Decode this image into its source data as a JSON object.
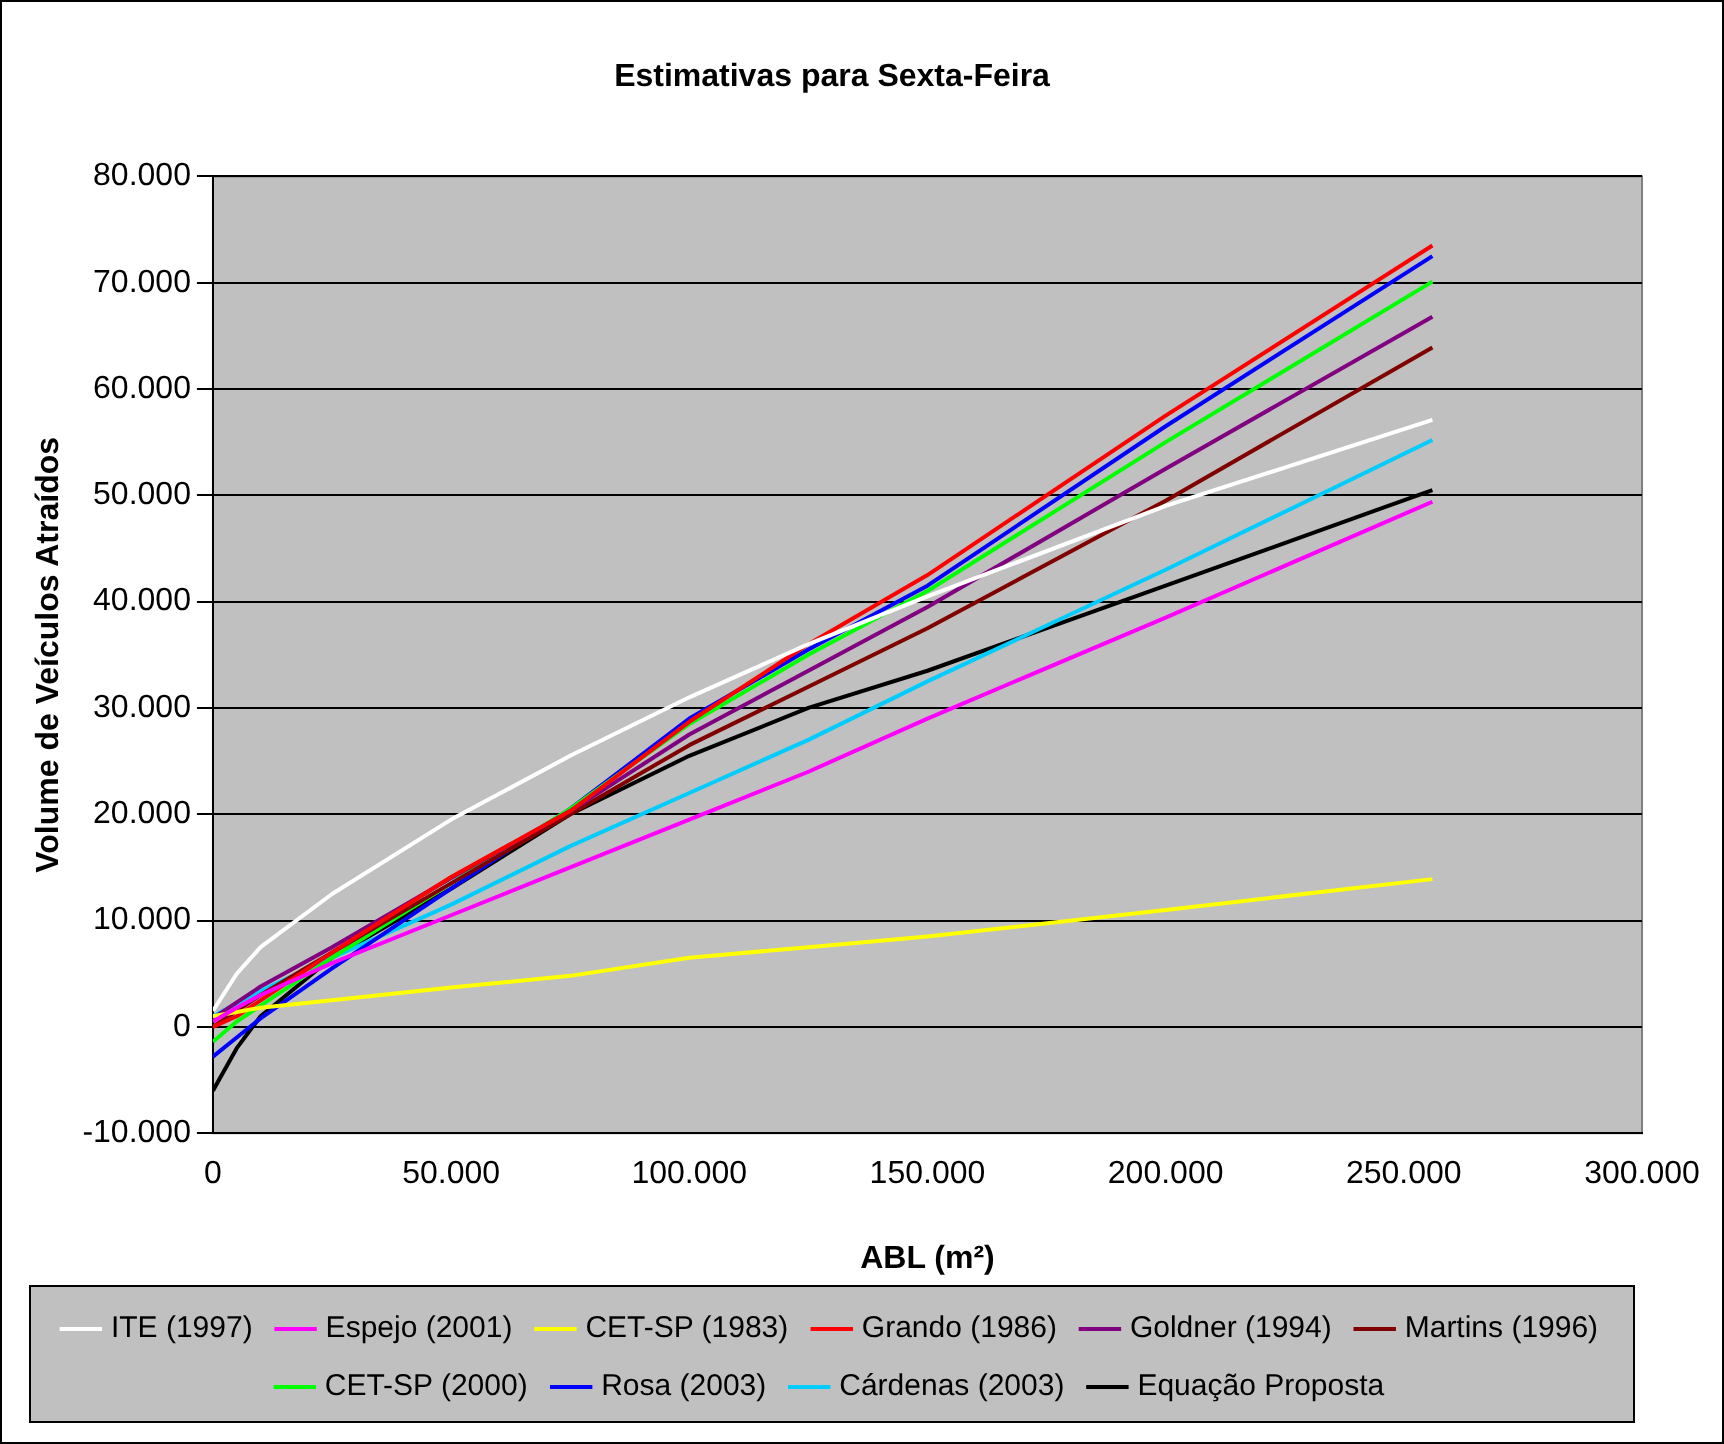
{
  "chart_data": {
    "type": "line",
    "title": "Estimativas para Sexta-Feira",
    "xlabel": "ABL (m²)",
    "ylabel": "Volume de Veículos Atraídos",
    "xlim": [
      0,
      300000
    ],
    "xticks": [
      0,
      {
        "value": 50000,
        "label": "50.000"
      },
      {
        "value": 100000,
        "label": "100.000"
      },
      {
        "value": 150000,
        "label": "150.000"
      },
      {
        "value": 200000,
        "label": "200.000"
      },
      {
        "value": 250000,
        "label": "250.000"
      },
      {
        "value": 300000,
        "label": "300.000"
      }
    ],
    "ylim": [
      -10000,
      80000
    ],
    "yticks": [
      {
        "value": -10000,
        "label": "-10.000"
      },
      0,
      {
        "value": 10000,
        "label": "10.000"
      },
      {
        "value": 20000,
        "label": "20.000"
      },
      {
        "value": 30000,
        "label": "30.000"
      },
      {
        "value": 40000,
        "label": "40.000"
      },
      {
        "value": 50000,
        "label": "50.000"
      },
      {
        "value": 60000,
        "label": "60.000"
      },
      {
        "value": 70000,
        "label": "70.000"
      },
      {
        "value": 80000,
        "label": "80.000"
      }
    ],
    "grid": "y",
    "legend": "bottom",
    "x": [
      0,
      5000,
      10000,
      25000,
      50000,
      75000,
      100000,
      125000,
      150000,
      200000,
      256000
    ],
    "series": [
      {
        "name": "ITE (1997)",
        "color": "#ffffff",
        "values": [
          1500,
          5000,
          7500,
          12500,
          19500,
          25500,
          31000,
          36000,
          40500,
          49000,
          57100
        ]
      },
      {
        "name": "Espejo (2001)",
        "color": "#ff00ff",
        "values": [
          500,
          1800,
          3000,
          6000,
          10500,
          15000,
          19500,
          24000,
          29000,
          38500,
          49400
        ]
      },
      {
        "name": "CET-SP (1983)",
        "color": "#ffff00",
        "values": [
          1000,
          1400,
          1800,
          2500,
          3700,
          4800,
          6500,
          7500,
          8500,
          11000,
          13900
        ]
      },
      {
        "name": "Grando (1986)",
        "color": "#ff0000",
        "values": [
          0,
          1000,
          2500,
          7000,
          14100,
          20300,
          28700,
          36000,
          42500,
          57500,
          73500
        ]
      },
      {
        "name": "Goldner (1994)",
        "color": "#800080",
        "values": [
          800,
          2300,
          3800,
          7500,
          14000,
          20300,
          27500,
          33500,
          39500,
          52500,
          66800
        ]
      },
      {
        "name": "Martins (1996)",
        "color": "#800000",
        "values": [
          0,
          1500,
          3000,
          7000,
          13500,
          20000,
          26500,
          32000,
          37500,
          49500,
          63900
        ]
      },
      {
        "name": "CET-SP (2000)",
        "color": "#00ff00",
        "values": [
          -1400,
          500,
          2000,
          6500,
          13500,
          20500,
          28500,
          35000,
          41000,
          55000,
          70100
        ]
      },
      {
        "name": "Rosa (2003)",
        "color": "#0000ff",
        "values": [
          -2800,
          -1000,
          800,
          5500,
          13000,
          20500,
          29000,
          35500,
          41500,
          56500,
          72500
        ]
      },
      {
        "name": "Cárdenas (2003)",
        "color": "#00ccff",
        "values": [
          1000,
          2200,
          3400,
          6500,
          11500,
          17000,
          22000,
          27000,
          32500,
          43000,
          55200
        ]
      },
      {
        "name": "Equação Proposta",
        "color": "#000000",
        "values": [
          -6000,
          -2000,
          1000,
          6500,
          13000,
          20000,
          25500,
          30000,
          33500,
          41500,
          50500
        ]
      }
    ]
  }
}
